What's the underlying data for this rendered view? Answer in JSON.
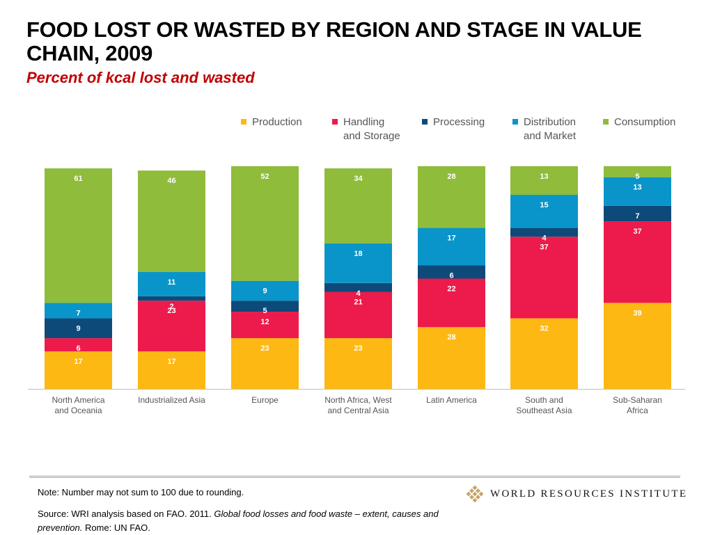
{
  "header": {
    "title": "FOOD LOST OR WASTED BY REGION AND STAGE IN VALUE CHAIN, 2009",
    "subtitle": "Percent of kcal lost and wasted"
  },
  "chart_data": {
    "type": "bar",
    "stacked": true,
    "categories": [
      [
        "North America",
        "and Oceania"
      ],
      [
        "Industrialized Asia"
      ],
      [
        "Europe"
      ],
      [
        "North Africa, West",
        "and Central Asia"
      ],
      [
        "Latin America"
      ],
      [
        "South and",
        "Southeast Asia"
      ],
      [
        "Sub-Saharan",
        "Africa"
      ]
    ],
    "series": [
      {
        "name": "Production",
        "color": "#fdb813",
        "values": [
          17,
          17,
          23,
          23,
          28,
          32,
          39
        ]
      },
      {
        "name": "Handling and Storage",
        "color": "#ec1b4b",
        "values": [
          6,
          23,
          12,
          21,
          22,
          37,
          37
        ]
      },
      {
        "name": "Processing",
        "color": "#0d4a7a",
        "values": [
          9,
          2,
          5,
          4,
          6,
          4,
          7
        ]
      },
      {
        "name": "Distribution and Market",
        "color": "#0995c9",
        "values": [
          7,
          11,
          9,
          18,
          17,
          15,
          13
        ]
      },
      {
        "name": "Consumption",
        "color": "#8fbc3a",
        "values": [
          61,
          46,
          52,
          34,
          28,
          13,
          5
        ]
      }
    ],
    "legend_labels": [
      [
        "Production"
      ],
      [
        "Handling",
        "and Storage"
      ],
      [
        "Processing"
      ],
      [
        "Distribution",
        "and Market"
      ],
      [
        "Consumption"
      ]
    ],
    "legend_position": "top-right",
    "grid": false
  },
  "footer": {
    "note": "Note: Number may not sum to 100 due to rounding.",
    "source_prefix": "Source: WRI analysis based on FAO. 2011. ",
    "source_title": "Global food losses and food waste – extent, causes and prevention.",
    "source_suffix": " Rome: UN FAO.",
    "logo_text": "WORLD RESOURCES INSTITUTE",
    "logo_color": "#c8a26a"
  }
}
